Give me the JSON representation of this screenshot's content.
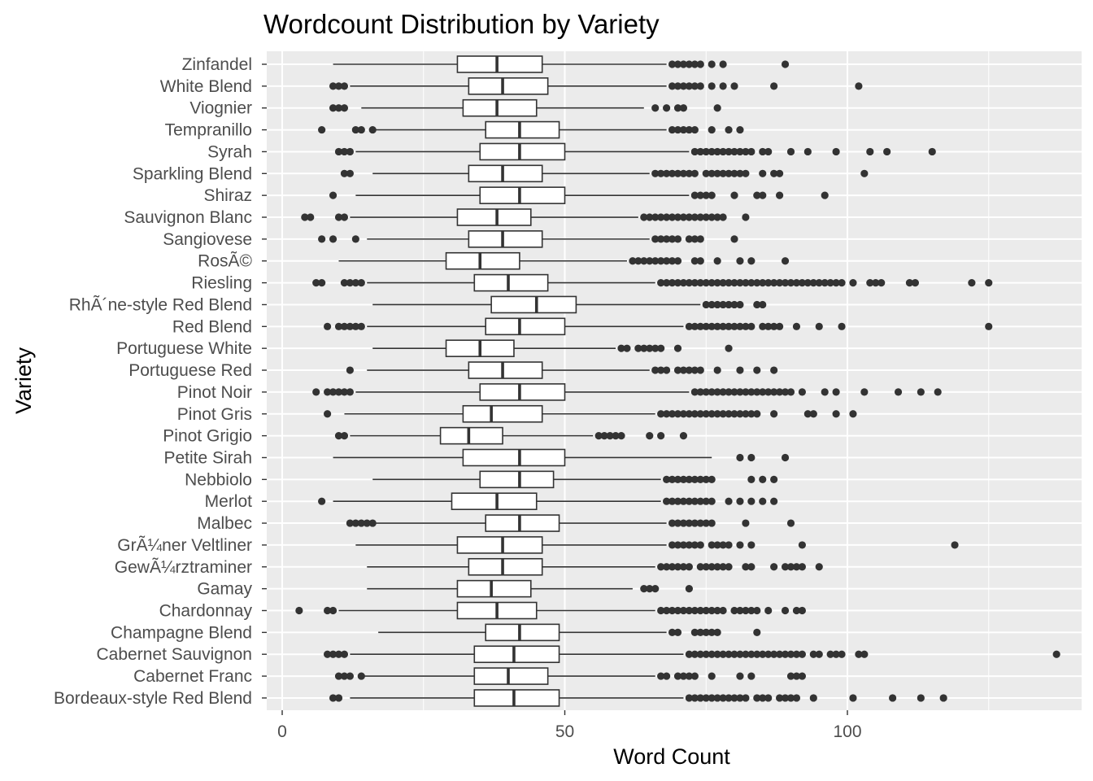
{
  "chart_data": {
    "type": "boxplot",
    "orientation": "horizontal",
    "title": "Wordcount Distribution by Variety",
    "xlabel": "Word Count",
    "ylabel": "Variety",
    "xlim": [
      -2,
      141
    ],
    "x_ticks": [
      0,
      50,
      100
    ],
    "x_tick_labels": [
      "0",
      "50",
      "100"
    ],
    "grid": true,
    "legend": "none",
    "colors": {
      "panel": "#ebebeb",
      "grid": "#ffffff",
      "box_fill": "#ffffff",
      "box_line": "#333333",
      "outlier": "#333333",
      "tick_text": "#4d4d4d"
    },
    "categories": [
      "Zinfandel",
      "White Blend",
      "Viognier",
      "Tempranillo",
      "Syrah",
      "Sparkling Blend",
      "Shiraz",
      "Sauvignon Blanc",
      "Sangiovese",
      "RosÃ©",
      "Riesling",
      "RhÃ´ne-style Red Blend",
      "Red Blend",
      "Portuguese White",
      "Portuguese Red",
      "Pinot Noir",
      "Pinot Gris",
      "Pinot Grigio",
      "Petite Sirah",
      "Nebbiolo",
      "Merlot",
      "Malbec",
      "GrÃ¼ner Veltliner",
      "GewÃ¼rztraminer",
      "Gamay",
      "Chardonnay",
      "Champagne Blend",
      "Cabernet Sauvignon",
      "Cabernet Franc",
      "Bordeaux-style Red Blend"
    ],
    "boxes": [
      {
        "min": 9,
        "q1": 31,
        "median": 38,
        "q3": 46,
        "max": 68,
        "outliers": [
          69,
          70,
          71,
          72,
          73,
          74,
          76,
          78,
          89
        ]
      },
      {
        "min": 12,
        "q1": 33,
        "median": 39,
        "q3": 47,
        "max": 68,
        "outliers": [
          9,
          10,
          11,
          69,
          70,
          71,
          72,
          73,
          74,
          76,
          78,
          80,
          87,
          102
        ]
      },
      {
        "min": 14,
        "q1": 32,
        "median": 38,
        "q3": 45,
        "max": 64,
        "outliers": [
          9,
          10,
          11,
          66,
          68,
          70,
          71,
          77
        ]
      },
      {
        "min": 16,
        "q1": 36,
        "median": 42,
        "q3": 49,
        "max": 68,
        "outliers": [
          7,
          13,
          14,
          16,
          69,
          70,
          71,
          72,
          73,
          76,
          79,
          81
        ]
      },
      {
        "min": 13,
        "q1": 35,
        "median": 42,
        "q3": 50,
        "max": 72,
        "outliers": [
          10,
          11,
          12,
          73,
          74,
          75,
          76,
          77,
          78,
          79,
          80,
          81,
          82,
          83,
          85,
          86,
          90,
          93,
          98,
          104,
          107,
          115
        ]
      },
      {
        "min": 16,
        "q1": 33,
        "median": 39,
        "q3": 46,
        "max": 65,
        "outliers": [
          11,
          12,
          66,
          67,
          68,
          69,
          70,
          71,
          72,
          73,
          75,
          76,
          77,
          78,
          79,
          80,
          81,
          82,
          85,
          87,
          88,
          103
        ]
      },
      {
        "min": 13,
        "q1": 35,
        "median": 42,
        "q3": 50,
        "max": 72,
        "outliers": [
          9,
          73,
          74,
          75,
          76,
          80,
          84,
          85,
          88,
          96
        ]
      },
      {
        "min": 12,
        "q1": 31,
        "median": 38,
        "q3": 44,
        "max": 63,
        "outliers": [
          4,
          5,
          10,
          11,
          64,
          65,
          66,
          67,
          68,
          69,
          70,
          71,
          72,
          73,
          74,
          75,
          76,
          77,
          78,
          82
        ]
      },
      {
        "min": 15,
        "q1": 33,
        "median": 39,
        "q3": 46,
        "max": 65,
        "outliers": [
          7,
          9,
          13,
          66,
          67,
          68,
          69,
          70,
          72,
          73,
          74,
          80
        ]
      },
      {
        "min": 10,
        "q1": 29,
        "median": 35,
        "q3": 42,
        "max": 61,
        "outliers": [
          62,
          63,
          64,
          65,
          66,
          67,
          68,
          69,
          70,
          73,
          74,
          77,
          81,
          83,
          89
        ]
      },
      {
        "min": 15,
        "q1": 34,
        "median": 40,
        "q3": 47,
        "max": 66,
        "outliers": [
          6,
          7,
          11,
          12,
          13,
          14,
          67,
          68,
          69,
          70,
          71,
          72,
          73,
          74,
          75,
          76,
          77,
          78,
          79,
          80,
          81,
          82,
          83,
          84,
          85,
          86,
          87,
          88,
          89,
          90,
          91,
          92,
          93,
          94,
          95,
          96,
          97,
          98,
          99,
          101,
          104,
          105,
          106,
          111,
          112,
          122,
          125
        ]
      },
      {
        "min": 16,
        "q1": 37,
        "median": 45,
        "q3": 52,
        "max": 74,
        "outliers": [
          75,
          76,
          77,
          78,
          79,
          80,
          81,
          84,
          85
        ]
      },
      {
        "min": 15,
        "q1": 36,
        "median": 42,
        "q3": 50,
        "max": 71,
        "outliers": [
          8,
          10,
          11,
          12,
          13,
          14,
          72,
          73,
          74,
          75,
          76,
          77,
          78,
          79,
          80,
          81,
          82,
          83,
          85,
          86,
          87,
          88,
          91,
          95,
          99,
          125
        ]
      },
      {
        "min": 16,
        "q1": 29,
        "median": 35,
        "q3": 41,
        "max": 59,
        "outliers": [
          60,
          61,
          63,
          64,
          65,
          66,
          67,
          70,
          79
        ]
      },
      {
        "min": 15,
        "q1": 33,
        "median": 39,
        "q3": 46,
        "max": 65,
        "outliers": [
          12,
          66,
          67,
          68,
          70,
          71,
          72,
          73,
          74,
          77,
          81,
          84,
          87
        ]
      },
      {
        "min": 13,
        "q1": 35,
        "median": 42,
        "q3": 50,
        "max": 72,
        "outliers": [
          6,
          8,
          9,
          10,
          11,
          12,
          73,
          74,
          75,
          76,
          77,
          78,
          79,
          80,
          81,
          82,
          83,
          84,
          85,
          86,
          87,
          88,
          89,
          90,
          92,
          96,
          98,
          103,
          109,
          113,
          116
        ]
      },
      {
        "min": 11,
        "q1": 32,
        "median": 37,
        "q3": 46,
        "max": 66,
        "outliers": [
          8,
          67,
          68,
          69,
          70,
          71,
          72,
          73,
          74,
          75,
          76,
          77,
          78,
          79,
          80,
          81,
          82,
          83,
          84,
          87,
          93,
          94,
          98,
          101
        ]
      },
      {
        "min": 12,
        "q1": 28,
        "median": 33,
        "q3": 39,
        "max": 55,
        "outliers": [
          10,
          11,
          56,
          57,
          58,
          59,
          60,
          65,
          67,
          71
        ]
      },
      {
        "min": 9,
        "q1": 32,
        "median": 42,
        "q3": 50,
        "max": 76,
        "outliers": [
          81,
          83,
          89
        ]
      },
      {
        "min": 16,
        "q1": 35,
        "median": 42,
        "q3": 48,
        "max": 67,
        "outliers": [
          68,
          69,
          70,
          71,
          72,
          73,
          74,
          75,
          76,
          83,
          85,
          87
        ]
      },
      {
        "min": 9,
        "q1": 30,
        "median": 38,
        "q3": 45,
        "max": 67,
        "outliers": [
          7,
          68,
          69,
          70,
          71,
          72,
          73,
          74,
          75,
          76,
          79,
          81,
          83,
          85,
          87
        ]
      },
      {
        "min": 16,
        "q1": 36,
        "median": 42,
        "q3": 49,
        "max": 68,
        "outliers": [
          12,
          13,
          14,
          15,
          16,
          69,
          70,
          71,
          72,
          73,
          74,
          75,
          76,
          82,
          90
        ]
      },
      {
        "min": 13,
        "q1": 31,
        "median": 39,
        "q3": 46,
        "max": 68,
        "outliers": [
          69,
          70,
          71,
          72,
          73,
          74,
          76,
          77,
          78,
          79,
          81,
          83,
          92,
          119
        ]
      },
      {
        "min": 15,
        "q1": 33,
        "median": 39,
        "q3": 46,
        "max": 66,
        "outliers": [
          67,
          68,
          69,
          70,
          71,
          72,
          74,
          75,
          76,
          77,
          78,
          79,
          82,
          83,
          87,
          89,
          90,
          91,
          92,
          95
        ]
      },
      {
        "min": 15,
        "q1": 31,
        "median": 37,
        "q3": 44,
        "max": 62,
        "outliers": [
          64,
          65,
          66,
          72
        ]
      },
      {
        "min": 10,
        "q1": 31,
        "median": 38,
        "q3": 45,
        "max": 66,
        "outliers": [
          3,
          8,
          9,
          67,
          68,
          69,
          70,
          71,
          72,
          73,
          74,
          75,
          76,
          77,
          78,
          80,
          81,
          82,
          83,
          84,
          86,
          89,
          91,
          92
        ]
      },
      {
        "min": 17,
        "q1": 36,
        "median": 42,
        "q3": 49,
        "max": 68,
        "outliers": [
          69,
          70,
          73,
          74,
          75,
          76,
          77,
          84
        ]
      },
      {
        "min": 12,
        "q1": 34,
        "median": 41,
        "q3": 49,
        "max": 71,
        "outliers": [
          8,
          9,
          10,
          11,
          72,
          73,
          74,
          75,
          76,
          77,
          78,
          79,
          80,
          81,
          82,
          83,
          84,
          85,
          86,
          87,
          88,
          89,
          90,
          91,
          92,
          94,
          95,
          97,
          98,
          99,
          102,
          103,
          137
        ]
      },
      {
        "min": 14,
        "q1": 34,
        "median": 40,
        "q3": 47,
        "max": 66,
        "outliers": [
          10,
          11,
          12,
          14,
          67,
          68,
          70,
          71,
          72,
          73,
          76,
          81,
          83,
          90,
          91,
          92
        ]
      },
      {
        "min": 12,
        "q1": 34,
        "median": 41,
        "q3": 49,
        "max": 71,
        "outliers": [
          9,
          10,
          72,
          73,
          74,
          75,
          76,
          77,
          78,
          79,
          80,
          81,
          82,
          84,
          85,
          86,
          88,
          89,
          90,
          91,
          94,
          101,
          108,
          113,
          117
        ]
      }
    ]
  }
}
